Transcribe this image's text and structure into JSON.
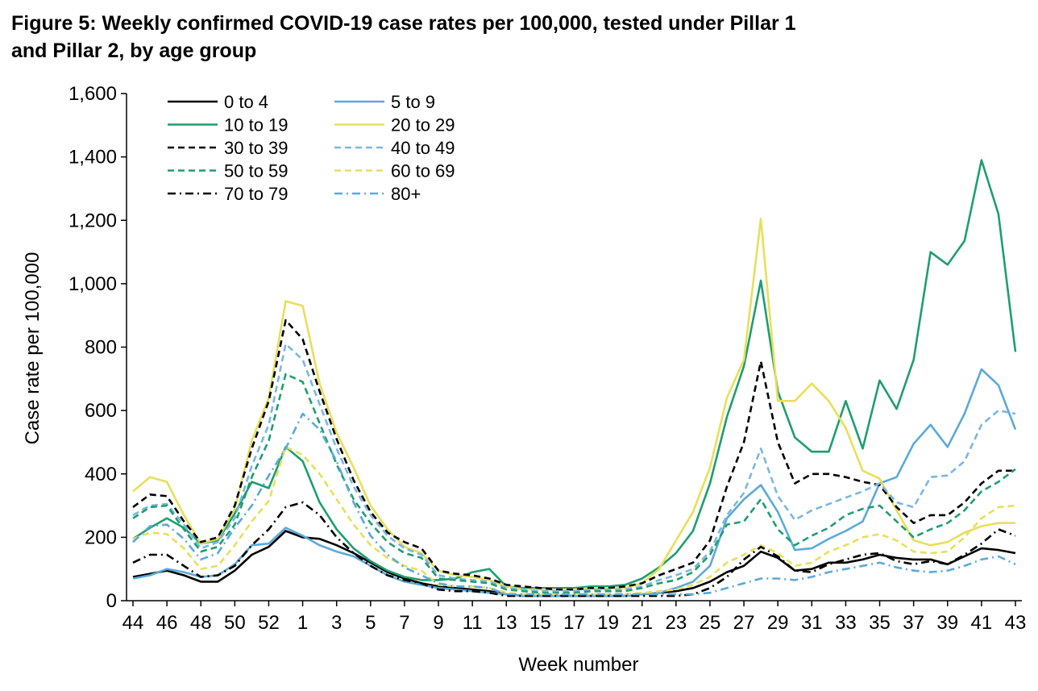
{
  "title_line1": "Figure 5: Weekly confirmed COVID-19 case rates per 100,000, tested under Pillar 1",
  "title_line2": "and Pillar 2, by age group",
  "chart_data": {
    "type": "line",
    "title": "Figure 5: Weekly confirmed COVID-19 case rates per 100,000, tested under Pillar 1 and Pillar 2, by age group",
    "xlabel": "Week number",
    "ylabel": "Case rate per 100,000",
    "ylim": [
      0,
      1600
    ],
    "y_ticks": [
      0,
      200,
      400,
      600,
      800,
      1000,
      1200,
      1400,
      1600
    ],
    "y_tick_labels": [
      "0",
      "200",
      "400",
      "600",
      "800",
      "1,000",
      "1,200",
      "1,400",
      "1,600"
    ],
    "x": [
      44,
      45,
      46,
      47,
      48,
      49,
      50,
      51,
      52,
      53,
      1,
      2,
      3,
      4,
      5,
      6,
      7,
      8,
      9,
      10,
      11,
      12,
      13,
      14,
      15,
      16,
      17,
      18,
      19,
      20,
      21,
      22,
      23,
      24,
      25,
      26,
      27,
      28,
      29,
      30,
      31,
      32,
      33,
      34,
      35,
      36,
      37,
      38,
      39,
      40,
      41,
      42,
      43
    ],
    "x_tick_labels": [
      "44",
      "46",
      "48",
      "50",
      "52",
      "1",
      "3",
      "5",
      "7",
      "9",
      "11",
      "13",
      "15",
      "17",
      "19",
      "21",
      "23",
      "25",
      "27",
      "29",
      "31",
      "33",
      "35",
      "37",
      "39",
      "41",
      "43"
    ],
    "x_tick_indices": [
      0,
      2,
      4,
      6,
      8,
      10,
      12,
      14,
      16,
      18,
      20,
      22,
      24,
      26,
      28,
      30,
      32,
      34,
      36,
      38,
      40,
      42,
      44,
      46,
      48,
      50,
      52
    ],
    "grid": false,
    "legend": "top-left",
    "series": [
      {
        "name": "0 to 4",
        "color": "#000000",
        "dash": "solid",
        "values": [
          75,
          85,
          95,
          80,
          60,
          60,
          95,
          145,
          170,
          220,
          200,
          195,
          175,
          150,
          120,
          90,
          70,
          55,
          45,
          40,
          35,
          30,
          20,
          15,
          15,
          15,
          15,
          15,
          15,
          15,
          20,
          25,
          30,
          40,
          60,
          90,
          110,
          155,
          135,
          95,
          100,
          120,
          120,
          130,
          145,
          135,
          130,
          130,
          115,
          140,
          165,
          160,
          150
        ]
      },
      {
        "name": "5 to 9",
        "color": "#5aaad8",
        "dash": "solid",
        "values": [
          70,
          80,
          100,
          90,
          75,
          80,
          115,
          175,
          180,
          230,
          205,
          175,
          155,
          140,
          110,
          80,
          60,
          50,
          40,
          35,
          30,
          25,
          20,
          15,
          15,
          15,
          15,
          15,
          15,
          15,
          20,
          25,
          40,
          60,
          110,
          260,
          320,
          365,
          280,
          160,
          165,
          195,
          220,
          250,
          370,
          390,
          495,
          555,
          485,
          590,
          730,
          680,
          540
        ]
      },
      {
        "name": "10 to 19",
        "color": "#1e9e6e",
        "dash": "solid",
        "values": [
          195,
          230,
          260,
          230,
          180,
          190,
          275,
          375,
          355,
          485,
          440,
          310,
          225,
          165,
          125,
          95,
          75,
          65,
          65,
          70,
          90,
          100,
          45,
          40,
          40,
          40,
          40,
          45,
          45,
          50,
          70,
          105,
          150,
          220,
          370,
          580,
          740,
          1010,
          660,
          515,
          470,
          470,
          630,
          480,
          695,
          605,
          760,
          1100,
          1060,
          1135,
          1390,
          1220,
          785
        ]
      },
      {
        "name": "20 to 29",
        "color": "#e8df5a",
        "dash": "solid",
        "values": [
          345,
          390,
          375,
          270,
          180,
          195,
          290,
          505,
          640,
          945,
          930,
          685,
          530,
          420,
          300,
          225,
          170,
          150,
          95,
          80,
          75,
          65,
          45,
          35,
          35,
          35,
          35,
          40,
          40,
          40,
          55,
          100,
          190,
          280,
          420,
          640,
          760,
          1205,
          630,
          630,
          685,
          630,
          545,
          410,
          385,
          285,
          190,
          175,
          185,
          215,
          235,
          245,
          245
        ]
      },
      {
        "name": "30 to 39",
        "color": "#000000",
        "dash": "8,5",
        "values": [
          295,
          335,
          330,
          250,
          185,
          200,
          300,
          480,
          630,
          885,
          825,
          660,
          510,
          380,
          280,
          215,
          185,
          165,
          95,
          85,
          80,
          70,
          50,
          45,
          40,
          35,
          35,
          40,
          40,
          45,
          55,
          80,
          100,
          120,
          190,
          360,
          500,
          755,
          500,
          370,
          400,
          400,
          390,
          375,
          365,
          295,
          245,
          270,
          270,
          310,
          370,
          410,
          410
        ]
      },
      {
        "name": "40 to 49",
        "color": "#7ab8e0",
        "dash": "8,5",
        "values": [
          270,
          300,
          305,
          240,
          165,
          185,
          260,
          425,
          555,
          810,
          760,
          620,
          480,
          360,
          270,
          205,
          165,
          145,
          80,
          70,
          65,
          60,
          40,
          35,
          30,
          30,
          30,
          35,
          35,
          35,
          45,
          65,
          80,
          100,
          155,
          270,
          340,
          480,
          330,
          255,
          285,
          305,
          325,
          345,
          370,
          310,
          295,
          390,
          395,
          440,
          555,
          600,
          590
        ]
      },
      {
        "name": "50 to 59",
        "color": "#1e9e6e",
        "dash": "8,5",
        "values": [
          260,
          295,
          300,
          225,
          155,
          170,
          240,
          390,
          505,
          715,
          690,
          560,
          430,
          320,
          245,
          185,
          150,
          135,
          70,
          65,
          60,
          55,
          35,
          30,
          25,
          25,
          25,
          30,
          30,
          30,
          40,
          55,
          65,
          90,
          145,
          240,
          250,
          320,
          225,
          175,
          205,
          230,
          270,
          290,
          300,
          250,
          200,
          225,
          245,
          285,
          345,
          375,
          415
        ]
      },
      {
        "name": "60 to 69",
        "color": "#e8df5a",
        "dash": "8,5",
        "values": [
          195,
          215,
          210,
          165,
          100,
          110,
          175,
          250,
          315,
          485,
          460,
          400,
          320,
          240,
          175,
          135,
          110,
          95,
          50,
          45,
          45,
          40,
          25,
          20,
          20,
          20,
          20,
          20,
          20,
          20,
          25,
          30,
          35,
          50,
          75,
          120,
          145,
          175,
          150,
          110,
          120,
          155,
          175,
          200,
          210,
          190,
          155,
          150,
          155,
          200,
          260,
          295,
          300
        ]
      },
      {
        "name": "70 to 79",
        "color": "#000000",
        "dash": "10,5,2,5",
        "values": [
          120,
          145,
          145,
          110,
          75,
          80,
          110,
          175,
          225,
          295,
          310,
          270,
          200,
          150,
          110,
          80,
          65,
          55,
          35,
          30,
          30,
          25,
          15,
          15,
          15,
          15,
          15,
          15,
          15,
          15,
          15,
          15,
          15,
          20,
          40,
          75,
          130,
          170,
          140,
          95,
          90,
          115,
          130,
          145,
          150,
          125,
          115,
          125,
          115,
          145,
          180,
          225,
          205
        ]
      },
      {
        "name": "80+",
        "color": "#5aaad8",
        "dash": "10,5,2,5",
        "values": [
          185,
          235,
          240,
          195,
          130,
          150,
          230,
          300,
          395,
          480,
          590,
          540,
          440,
          310,
          205,
          145,
          105,
          80,
          55,
          45,
          45,
          40,
          20,
          20,
          20,
          20,
          20,
          20,
          20,
          20,
          20,
          20,
          20,
          20,
          25,
          40,
          55,
          70,
          70,
          65,
          75,
          90,
          100,
          110,
          120,
          105,
          95,
          90,
          95,
          110,
          130,
          140,
          115
        ]
      }
    ]
  }
}
